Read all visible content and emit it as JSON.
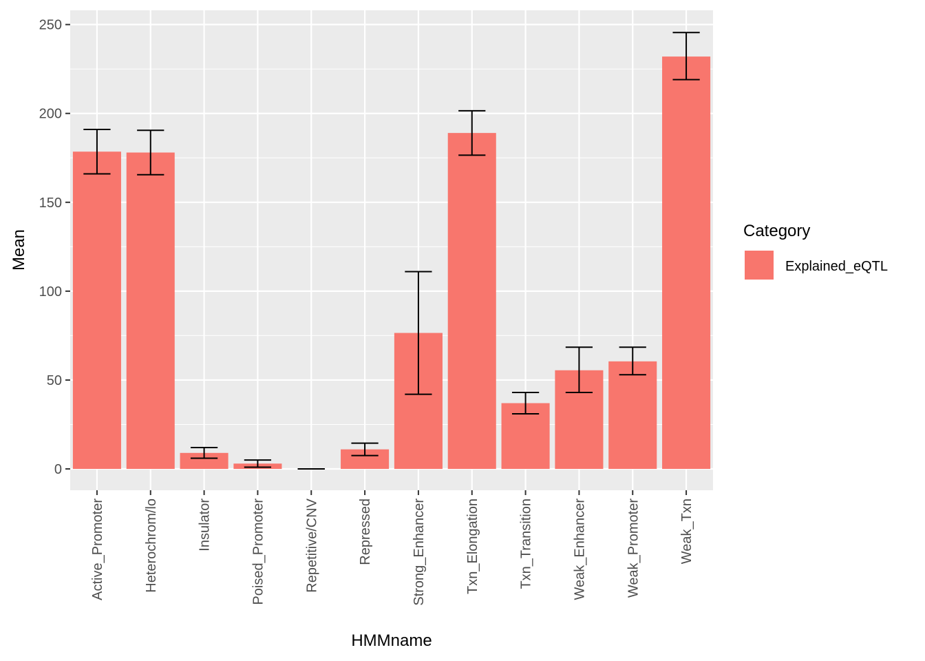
{
  "chart_data": {
    "type": "bar",
    "title": "",
    "xlabel": "HMMname",
    "ylabel": "Mean",
    "ylim": [
      -12,
      258
    ],
    "yticks": [
      0,
      50,
      100,
      150,
      200,
      250
    ],
    "categories": [
      "Active_Promoter",
      "Heterochrom/lo",
      "Insulator",
      "Poised_Promoter",
      "Repetitive/CNV",
      "Repressed",
      "Strong_Enhancer",
      "Txn_Elongation",
      "Txn_Transition",
      "Weak_Enhancer",
      "Weak_Promoter",
      "Weak_Txn"
    ],
    "series": [
      {
        "name": "Explained_eQTL",
        "values": [
          178.5,
          178,
          9,
          3,
          0,
          11,
          76.5,
          189,
          37,
          55.5,
          60.5,
          232
        ],
        "error_lower": [
          166,
          165.5,
          6,
          1,
          0,
          7.5,
          42,
          176.5,
          31,
          43,
          53,
          219
        ],
        "error_upper": [
          191,
          190.5,
          12,
          5,
          0,
          14.5,
          111,
          201.5,
          43,
          68.5,
          68.5,
          245.5
        ]
      }
    ],
    "legend": {
      "title": "Category",
      "position": "right"
    },
    "colors": {
      "bar": "#F8766D",
      "panel": "#EBEBEB",
      "grid": "#FFFFFF",
      "errorbar": "#000000"
    },
    "grid": true
  }
}
